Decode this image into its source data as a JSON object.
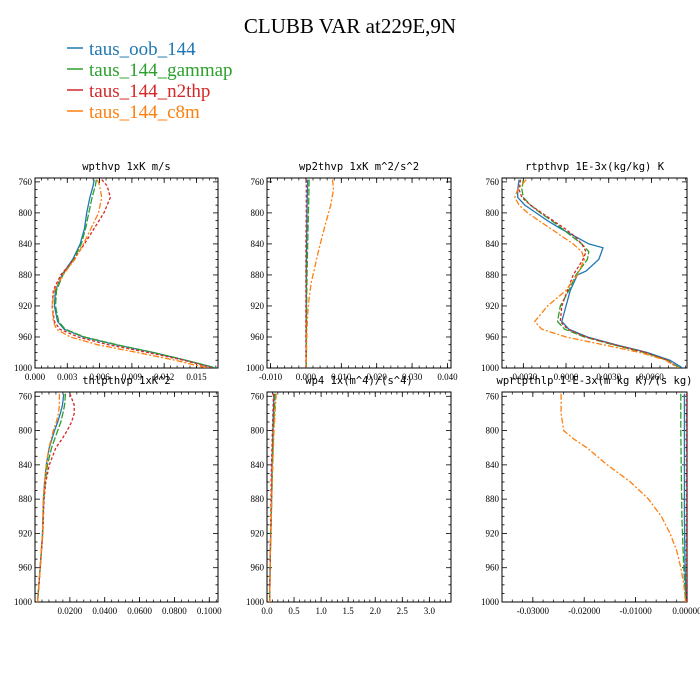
{
  "figure_title": "CLUBB VAR at229E,9N",
  "series_styles": [
    {
      "name": "taus_oob_144",
      "color": "#1f77b4",
      "dash": ""
    },
    {
      "name": "taus_144_gammap",
      "color": "#2ca02c",
      "dash": "7,2"
    },
    {
      "name": "taus_144_n2thp",
      "color": "#d62728",
      "dash": "3,2"
    },
    {
      "name": "taus_144_c8m",
      "color": "#ff7f0e",
      "dash": "6,2,2,2"
    }
  ],
  "chart_data": [
    {
      "type": "line",
      "title": "wpthvp  1xK m/s",
      "xlim": [
        0,
        0.017
      ],
      "ylim": [
        1000,
        755
      ],
      "x_ticks": [
        0.0,
        0.003,
        0.006,
        0.009,
        0.012,
        0.015
      ],
      "x_tick_labels": [
        "0.000",
        "0.003",
        "0.006",
        "0.009",
        "0.012",
        "0.015"
      ],
      "y_ticks": [
        760,
        800,
        840,
        880,
        920,
        960,
        1000
      ],
      "y_tick_labels": [
        "760",
        "800",
        "840",
        "880",
        "920",
        "960",
        "1000"
      ],
      "series": [
        {
          "name": "taus_oob_144",
          "y": [
            757,
            765,
            780,
            800,
            820,
            840,
            860,
            880,
            900,
            920,
            940,
            950,
            960,
            970,
            980,
            990,
            1000
          ],
          "x": [
            0.0055,
            0.0054,
            0.0051,
            0.0048,
            0.0046,
            0.0042,
            0.0035,
            0.0025,
            0.0019,
            0.0018,
            0.0021,
            0.0027,
            0.0045,
            0.0075,
            0.011,
            0.014,
            0.0168
          ]
        },
        {
          "name": "taus_144_gammap",
          "y": [
            757,
            765,
            780,
            800,
            820,
            840,
            860,
            880,
            900,
            920,
            940,
            950,
            960,
            970,
            980,
            990,
            1000
          ],
          "x": [
            0.0057,
            0.0056,
            0.0053,
            0.005,
            0.0047,
            0.0043,
            0.0036,
            0.0026,
            0.002,
            0.0019,
            0.0022,
            0.0028,
            0.0046,
            0.0076,
            0.011,
            0.014,
            0.0168
          ]
        },
        {
          "name": "taus_144_n2thp",
          "y": [
            757,
            765,
            780,
            800,
            820,
            840,
            860,
            880,
            900,
            920,
            940,
            950,
            960,
            970,
            980,
            990,
            1000
          ],
          "x": [
            0.0062,
            0.0067,
            0.007,
            0.0064,
            0.0055,
            0.0046,
            0.0036,
            0.0024,
            0.0017,
            0.0016,
            0.0018,
            0.0023,
            0.004,
            0.0068,
            0.0105,
            0.0138,
            0.0165
          ]
        },
        {
          "name": "taus_144_c8m",
          "y": [
            757,
            765,
            780,
            800,
            820,
            840,
            860,
            880,
            900,
            920,
            940,
            950,
            960,
            970,
            980,
            990,
            1000
          ],
          "x": [
            0.0058,
            0.006,
            0.0062,
            0.0059,
            0.0052,
            0.0045,
            0.0037,
            0.0026,
            0.0018,
            0.0016,
            0.0017,
            0.002,
            0.0033,
            0.0058,
            0.0095,
            0.013,
            0.016
          ]
        }
      ]
    },
    {
      "type": "line",
      "title": "wp2thvp  1xK m^2/s^2",
      "xlim": [
        -0.011,
        0.041
      ],
      "ylim": [
        1000,
        755
      ],
      "x_ticks": [
        -0.01,
        0.0,
        0.01,
        0.02,
        0.03,
        0.04
      ],
      "x_tick_labels": [
        "-0.010",
        "0.000",
        "0.010",
        "0.020",
        "0.030",
        "0.040"
      ],
      "y_ticks": [
        760,
        800,
        840,
        880,
        920,
        960,
        1000
      ],
      "y_tick_labels": [
        "760",
        "800",
        "840",
        "880",
        "920",
        "960",
        "1000"
      ],
      "series": [
        {
          "name": "taus_oob_144",
          "y": [
            757,
            780,
            800,
            840,
            880,
            920,
            960,
            1000
          ],
          "x": [
            0.0005,
            0.0004,
            0.0003,
            0.0002,
            0.0001,
            0.0001,
            0.0001,
            0.0001
          ]
        },
        {
          "name": "taus_144_gammap",
          "y": [
            757,
            780,
            800,
            840,
            880,
            920,
            960,
            1000
          ],
          "x": [
            0.0009,
            0.0008,
            0.0007,
            0.0005,
            0.0003,
            0.0002,
            0.0001,
            0.0001
          ]
        },
        {
          "name": "taus_144_n2thp",
          "y": [
            757,
            780,
            800,
            840,
            880,
            920,
            960,
            1000
          ],
          "x": [
            0.0001,
            0.0001,
            0.0001,
            0.0,
            0.0,
            0.0,
            0.0,
            0.0
          ]
        },
        {
          "name": "taus_144_c8m",
          "y": [
            757,
            770,
            790,
            810,
            830,
            850,
            870,
            890,
            910,
            930,
            950,
            970,
            990,
            1000
          ],
          "x": [
            0.0075,
            0.0078,
            0.007,
            0.0058,
            0.0046,
            0.0035,
            0.0025,
            0.0015,
            0.0009,
            0.0005,
            0.0003,
            0.0002,
            0.0001,
            0.0001
          ]
        }
      ]
    },
    {
      "type": "line",
      "title": "rtpthvp  1E-3x(kg/kg) K",
      "xlim": [
        -0.0045,
        0.0085
      ],
      "ylim": [
        1000,
        755
      ],
      "x_ticks": [
        -0.003,
        0.0,
        0.003,
        0.006
      ],
      "x_tick_labels": [
        "-0.0030",
        "0.0000",
        "0.0030",
        "0.0060"
      ],
      "y_ticks": [
        760,
        800,
        840,
        880,
        920,
        960,
        1000
      ],
      "y_tick_labels": [
        "760",
        "800",
        "840",
        "880",
        "920",
        "960",
        "1000"
      ],
      "series": [
        {
          "name": "taus_oob_144",
          "y": [
            757,
            770,
            780,
            790,
            800,
            810,
            820,
            830,
            840,
            845,
            860,
            875,
            880,
            900,
            920,
            940,
            950,
            960,
            970,
            980,
            990,
            1000
          ],
          "x": [
            -0.0033,
            -0.0034,
            -0.0034,
            -0.0029,
            -0.0021,
            -0.0013,
            -0.0004,
            0.0006,
            0.0016,
            0.0026,
            0.0023,
            0.0014,
            0.0008,
            0.0003,
            0.0,
            -0.0003,
            0.0002,
            0.0015,
            0.0035,
            0.0057,
            0.0073,
            0.0082
          ]
        },
        {
          "name": "taus_144_gammap",
          "y": [
            757,
            770,
            780,
            790,
            800,
            810,
            820,
            830,
            840,
            850,
            860,
            880,
            900,
            920,
            940,
            950,
            960,
            970,
            980,
            990,
            1000
          ],
          "x": [
            -0.003,
            -0.0031,
            -0.003,
            -0.0025,
            -0.0018,
            -0.001,
            -0.0003,
            0.0004,
            0.0011,
            0.0016,
            0.0015,
            0.0007,
            0.0002,
            -0.0004,
            -0.0006,
            -0.0001,
            0.0013,
            0.0033,
            0.0055,
            0.0071,
            0.008
          ]
        },
        {
          "name": "taus_144_n2thp",
          "y": [
            757,
            770,
            780,
            790,
            800,
            810,
            820,
            830,
            840,
            850,
            860,
            880,
            900,
            920,
            940,
            950,
            960,
            970,
            980,
            990,
            1000
          ],
          "x": [
            -0.0032,
            -0.0033,
            -0.0031,
            -0.0025,
            -0.0017,
            -0.0009,
            -0.0001,
            0.0006,
            0.0011,
            0.0014,
            0.0012,
            0.0005,
            0.0001,
            -0.0003,
            -0.0004,
            0.0001,
            0.0014,
            0.0034,
            0.0056,
            0.0071,
            0.0079
          ]
        },
        {
          "name": "taus_144_c8m",
          "y": [
            757,
            770,
            780,
            790,
            800,
            810,
            820,
            830,
            840,
            850,
            860,
            880,
            900,
            920,
            940,
            950,
            960,
            970,
            980,
            990,
            1000
          ],
          "x": [
            -0.0028,
            -0.0034,
            -0.0036,
            -0.0033,
            -0.0027,
            -0.0019,
            -0.0011,
            -0.0003,
            0.0005,
            0.0011,
            0.0013,
            0.0008,
            0.0,
            -0.0013,
            -0.0022,
            -0.0017,
            0.0,
            0.0026,
            0.0052,
            0.007,
            0.0079
          ]
        }
      ]
    },
    {
      "type": "line",
      "title": "thlpthvp  1xK^2",
      "xlim": [
        0,
        0.105
      ],
      "ylim": [
        1000,
        755
      ],
      "x_ticks": [
        0.02,
        0.04,
        0.06,
        0.08,
        0.1
      ],
      "x_tick_labels": [
        "0.0200",
        "0.0400",
        "0.0600",
        "0.0800",
        "0.1000"
      ],
      "y_ticks": [
        760,
        800,
        840,
        880,
        920,
        960,
        1000
      ],
      "y_tick_labels": [
        "760",
        "800",
        "840",
        "880",
        "920",
        "960",
        "1000"
      ],
      "series": [
        {
          "name": "taus_oob_144",
          "y": [
            757,
            770,
            780,
            790,
            800,
            820,
            840,
            860,
            880,
            920,
            960,
            1000
          ],
          "x": [
            0.0165,
            0.0158,
            0.0145,
            0.013,
            0.0112,
            0.0082,
            0.0065,
            0.0055,
            0.0048,
            0.0043,
            0.003,
            0.0015
          ]
        },
        {
          "name": "taus_144_gammap",
          "y": [
            757,
            770,
            780,
            790,
            800,
            820,
            840,
            860,
            880,
            920,
            960,
            1000
          ],
          "x": [
            0.0175,
            0.017,
            0.016,
            0.0148,
            0.013,
            0.0095,
            0.0072,
            0.0058,
            0.005,
            0.0044,
            0.003,
            0.0015
          ]
        },
        {
          "name": "taus_144_n2thp",
          "y": [
            757,
            770,
            780,
            790,
            800,
            810,
            820,
            840,
            860,
            880,
            920,
            960,
            1000
          ],
          "x": [
            0.02,
            0.0225,
            0.0225,
            0.021,
            0.0185,
            0.0155,
            0.012,
            0.0082,
            0.0062,
            0.0052,
            0.0045,
            0.003,
            0.0015
          ]
        },
        {
          "name": "taus_144_c8m",
          "y": [
            757,
            770,
            780,
            790,
            800,
            820,
            840,
            860,
            880,
            920,
            960,
            1000
          ],
          "x": [
            0.014,
            0.014,
            0.0135,
            0.0122,
            0.0105,
            0.008,
            0.0065,
            0.0055,
            0.0048,
            0.0043,
            0.003,
            0.0015
          ]
        }
      ]
    },
    {
      "type": "line",
      "title": "wp4  1x(m^4)/(s^4)",
      "xlim": [
        0,
        3.4
      ],
      "ylim": [
        1000,
        755
      ],
      "x_ticks": [
        0.0,
        0.5,
        1.0,
        1.5,
        2.0,
        2.5,
        3.0
      ],
      "x_tick_labels": [
        "0.0",
        "0.5",
        "1.0",
        "1.5",
        "2.0",
        "2.5",
        "3.0"
      ],
      "y_ticks": [
        760,
        800,
        840,
        880,
        920,
        960,
        1000
      ],
      "y_tick_labels": [
        "760",
        "800",
        "840",
        "880",
        "920",
        "960",
        "1000"
      ],
      "series": [
        {
          "name": "taus_oob_144",
          "y": [
            757,
            800,
            850,
            900,
            950,
            1000
          ],
          "x": [
            0.13,
            0.11,
            0.09,
            0.08,
            0.06,
            0.05
          ]
        },
        {
          "name": "taus_144_gammap",
          "y": [
            757,
            800,
            850,
            900,
            950,
            1000
          ],
          "x": [
            0.15,
            0.12,
            0.1,
            0.08,
            0.06,
            0.05
          ]
        },
        {
          "name": "taus_144_n2thp",
          "y": [
            757,
            800,
            850,
            900,
            950,
            1000
          ],
          "x": [
            0.12,
            0.1,
            0.08,
            0.07,
            0.06,
            0.05
          ]
        },
        {
          "name": "taus_144_c8m",
          "y": [
            757,
            800,
            850,
            900,
            950,
            1000
          ],
          "x": [
            0.17,
            0.13,
            0.1,
            0.08,
            0.06,
            0.05
          ]
        }
      ]
    },
    {
      "type": "line",
      "title": "wprtpthlp  1-E-3x(m kg K)/(s kg)",
      "xlim": [
        -0.036,
        0.0
      ],
      "ylim": [
        1000,
        755
      ],
      "x_ticks": [
        -0.03,
        -0.02,
        -0.01,
        0.0
      ],
      "x_tick_labels": [
        "-0.03000",
        "-0.02000",
        "-0.01000",
        "0.00000"
      ],
      "y_ticks": [
        760,
        800,
        840,
        880,
        920,
        960,
        1000
      ],
      "y_tick_labels": [
        "760",
        "800",
        "840",
        "880",
        "920",
        "960",
        "1000"
      ],
      "series": [
        {
          "name": "taus_oob_144",
          "y": [
            757,
            800,
            850,
            900,
            950,
            1000
          ],
          "x": [
            -0.0005,
            -0.0005,
            -0.0005,
            -0.0005,
            -0.0004,
            -0.0002
          ]
        },
        {
          "name": "taus_144_gammap",
          "y": [
            757,
            800,
            850,
            900,
            950,
            1000
          ],
          "x": [
            -0.0012,
            -0.0012,
            -0.0011,
            -0.001,
            -0.0007,
            -0.0003
          ]
        },
        {
          "name": "taus_144_n2thp",
          "y": [
            757,
            800,
            850,
            900,
            950,
            1000
          ],
          "x": [
            -0.0001,
            -0.0001,
            -0.0001,
            -0.0001,
            -0.0001,
            -0.0001
          ]
        },
        {
          "name": "taus_144_c8m",
          "y": [
            757,
            780,
            800,
            810,
            820,
            840,
            860,
            880,
            900,
            920,
            940,
            960,
            980,
            1000
          ],
          "x": [
            -0.0245,
            -0.0245,
            -0.024,
            -0.022,
            -0.0195,
            -0.0155,
            -0.011,
            -0.0075,
            -0.005,
            -0.0033,
            -0.002,
            -0.0012,
            -0.0006,
            -0.0003
          ]
        }
      ]
    }
  ]
}
